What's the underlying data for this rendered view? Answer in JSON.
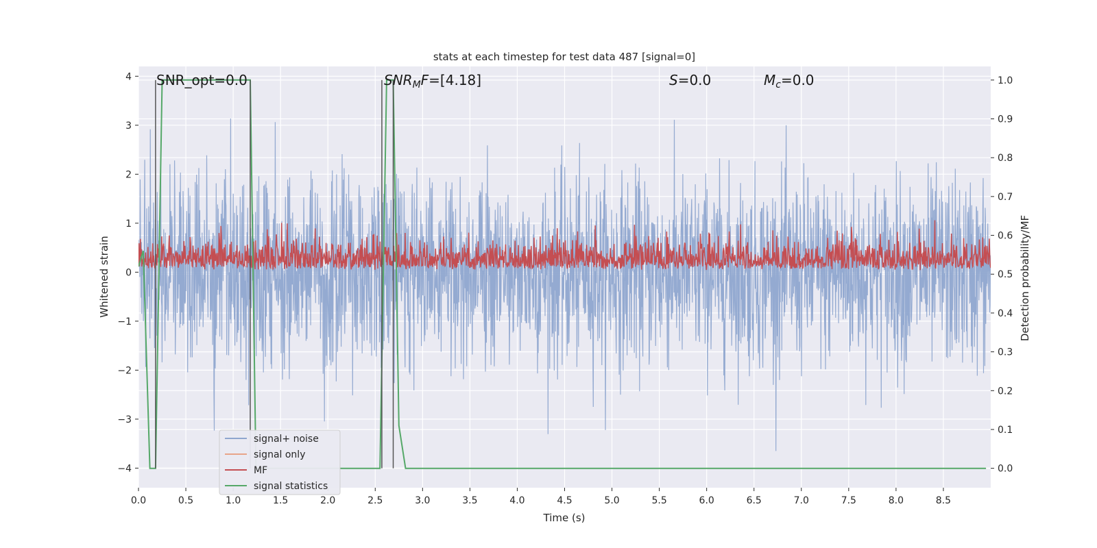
{
  "chart_data": {
    "type": "line",
    "title": "stats at each timestep for test data 487 [signal=0]",
    "xlabel": "Time (s)",
    "ylabel": "Whitened strain",
    "ylabel_right": "Detection probability/MF",
    "xlim": [
      0.0,
      9.0
    ],
    "ylim": [
      -4.4,
      4.2
    ],
    "ylim_right": [
      -0.05,
      1.035
    ],
    "x_ticks": [
      "0.0",
      "0.5",
      "1.0",
      "1.5",
      "2.0",
      "2.5",
      "3.0",
      "3.5",
      "4.0",
      "4.5",
      "5.0",
      "5.5",
      "6.0",
      "6.5",
      "7.0",
      "7.5",
      "8.0",
      "8.5"
    ],
    "y_ticks": [
      "−4",
      "−3",
      "−2",
      "−1",
      "0",
      "1",
      "2",
      "3",
      "4"
    ],
    "y_right_ticks": [
      "0.0",
      "0.1",
      "0.2",
      "0.3",
      "0.4",
      "0.5",
      "0.6",
      "0.7",
      "0.8",
      "0.9",
      "1.0"
    ],
    "grid": true,
    "legend_position": "lower-left",
    "annotations": {
      "snr_opt": "SNR_opt=0.0",
      "snr_mf_italic": "SNR",
      "snr_mf_sub": "M",
      "snr_mf_italic2": "F",
      "snr_mf_value": "=[4.18]",
      "s_italic": "S",
      "s_value": "=0.0",
      "mc_italic": "M",
      "mc_sub": "c",
      "mc_value": "=0.0"
    },
    "series": [
      {
        "name": "signal+ noise",
        "color": "#8fa6cf",
        "axis": "left",
        "description_values": {
          "mean": 0.0,
          "std": 0.95,
          "min": -3.65,
          "max": 3.85
        }
      },
      {
        "name": "signal only",
        "color": "#e8a488",
        "axis": "left",
        "values": []
      },
      {
        "name": "MF",
        "color": "#c44e52",
        "axis": "right",
        "description_values": {
          "mean": 0.545,
          "range": [
            0.5,
            0.64
          ]
        }
      },
      {
        "name": "signal statistics",
        "color": "#55a868",
        "axis": "right",
        "x": [
          0.0,
          0.05,
          0.12,
          0.18,
          0.25,
          1.18,
          1.24,
          2.55,
          2.62,
          2.69,
          2.75,
          2.82,
          8.95
        ],
        "values": [
          0.52,
          0.56,
          0.0,
          0.0,
          1.0,
          1.0,
          0.0,
          0.0,
          1.0,
          1.0,
          0.11,
          0.0,
          0.0
        ]
      }
    ],
    "vertical_markers": [
      0.18,
      1.18,
      2.57,
      2.69
    ]
  },
  "colors": {
    "plot_bg": "#eaeaf2",
    "grid": "#ffffff",
    "marker_line": "#555555"
  }
}
